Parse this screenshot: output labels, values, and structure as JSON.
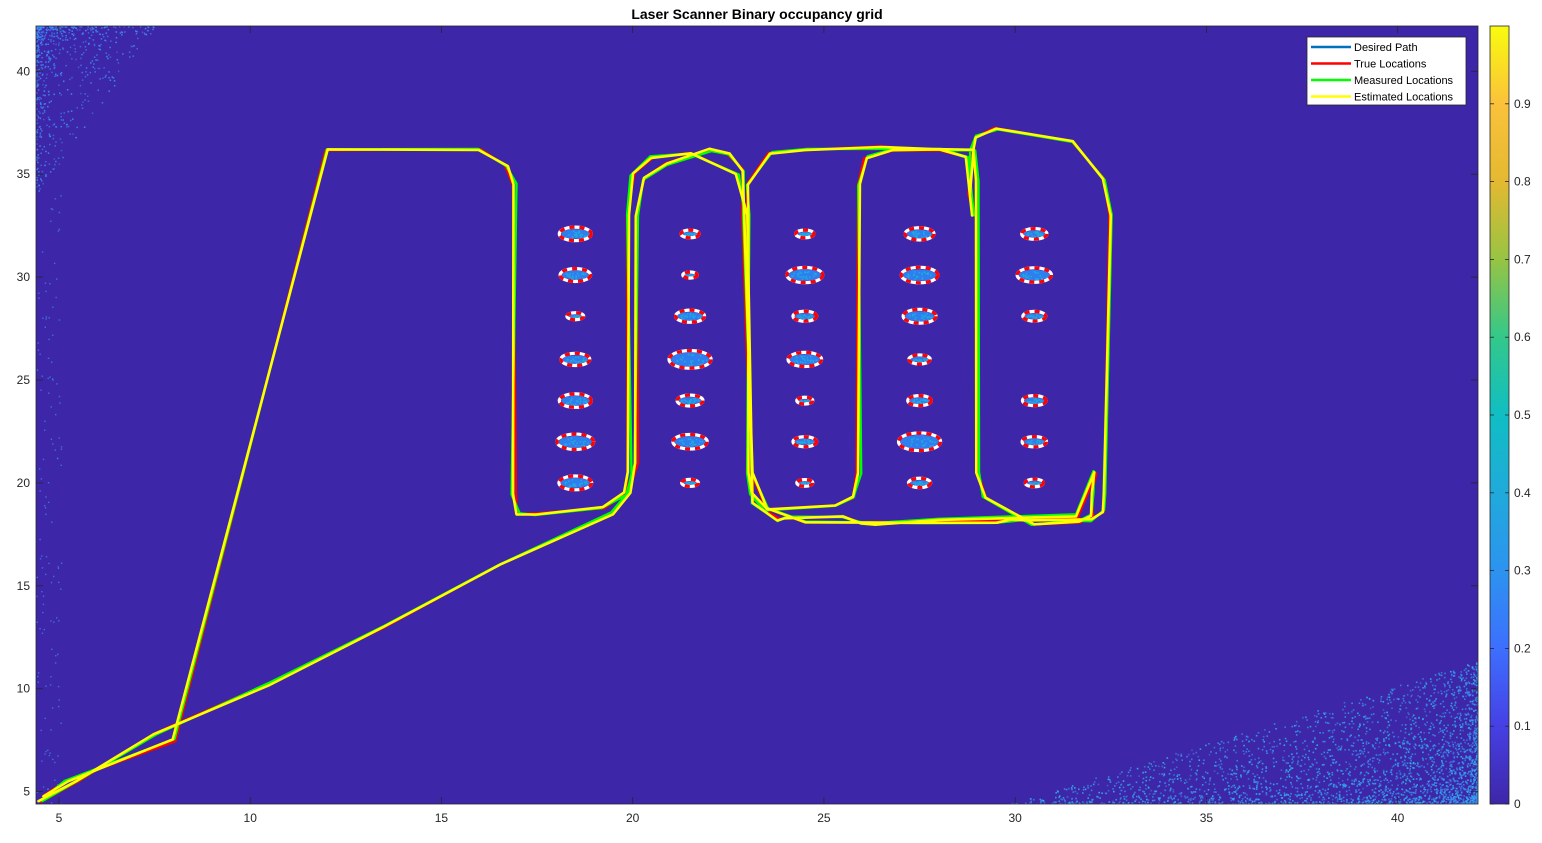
{
  "chart_data": {
    "type": "line",
    "title": "Laser Scanner Binary occupancy grid",
    "xlabel": "",
    "ylabel": "",
    "xlim": [
      4.4,
      42.1
    ],
    "ylim": [
      4.4,
      42.2
    ],
    "x_ticks": [
      5,
      10,
      15,
      20,
      25,
      30,
      35,
      40
    ],
    "y_ticks": [
      5,
      10,
      15,
      20,
      25,
      30,
      35,
      40
    ],
    "background_color": "#3e26a8",
    "grid": false,
    "legend_position": "top-right",
    "series": [
      {
        "name": "Desired Path",
        "color": "#0072bd"
      },
      {
        "name": "True Locations",
        "color": "#ff0000"
      },
      {
        "name": "Measured Locations",
        "color": "#00ff00"
      },
      {
        "name": "Estimated Locations",
        "color": "#ffff00"
      }
    ],
    "path": {
      "x": [
        4.5,
        5.5,
        7.5,
        10.5,
        13.5,
        16.5,
        19.5,
        19.9,
        20.1,
        20.1,
        20.3,
        20.9,
        22.0,
        22.5,
        22.9,
        22.9,
        23.1,
        23.5,
        24.5,
        27.5,
        29.5,
        29.9,
        30.3,
        32.0,
        32.3,
        32.3,
        32.5,
        32.3,
        31.5,
        29.5,
        29.0,
        28.9,
        28.8,
        28.9,
        28.7,
        28.0,
        26.8,
        26.1,
        25.9,
        25.9,
        25.8,
        25.3,
        23.5,
        23.1,
        23.0,
        23.0,
        23.0,
        23.6,
        24.5,
        26.5,
        27.8,
        28.9,
        29.0,
        29.0,
        29.2,
        30.5,
        31.7,
        32.0,
        32.0,
        32.1,
        31.6,
        28.0,
        26.3,
        26.0,
        25.5,
        24.0,
        23.8,
        23.1,
        23.0,
        22.7,
        21.5,
        20.5,
        20.0,
        19.9,
        19.9,
        19.8,
        19.2,
        17.5,
        17.0,
        16.9,
        16.9,
        16.7,
        16.0,
        12.0,
        8.0,
        5.2,
        4.6
      ],
      "y": [
        4.5,
        5.5,
        7.8,
        10.2,
        13.0,
        16.0,
        18.5,
        19.5,
        21.0,
        33.0,
        34.8,
        35.5,
        36.2,
        36.0,
        35.2,
        33.0,
        20.5,
        18.8,
        18.1,
        18.1,
        18.1,
        18.2,
        18.2,
        18.2,
        18.6,
        19.5,
        33.0,
        34.8,
        36.6,
        37.2,
        36.8,
        36.2,
        34.0,
        33.0,
        35.8,
        36.2,
        36.2,
        35.8,
        34.5,
        20.5,
        19.3,
        18.9,
        18.7,
        19.5,
        20.5,
        33.0,
        34.5,
        36.0,
        36.2,
        36.3,
        36.2,
        36.2,
        34.7,
        20.5,
        19.3,
        18.0,
        18.1,
        18.4,
        19.5,
        20.5,
        18.4,
        18.2,
        18.0,
        18.0,
        18.4,
        18.3,
        18.2,
        19.0,
        33.0,
        35.0,
        36.0,
        35.8,
        35.0,
        33.0,
        20.5,
        19.5,
        18.8,
        18.5,
        18.5,
        19.5,
        34.5,
        35.4,
        36.2,
        36.2,
        7.5,
        5.5,
        4.8
      ]
    },
    "colorbar": {
      "ticks": [
        0,
        0.1,
        0.2,
        0.3,
        0.4,
        0.5,
        0.6,
        0.7,
        0.8,
        0.9
      ]
    },
    "obstacles": [
      {
        "x": 18.5,
        "y": 32.1,
        "r": 0.42
      },
      {
        "x": 18.5,
        "y": 30.1,
        "r": 0.4
      },
      {
        "x": 18.5,
        "y": 28.1,
        "r": 0.22
      },
      {
        "x": 18.5,
        "y": 26.0,
        "r": 0.38
      },
      {
        "x": 18.5,
        "y": 24.0,
        "r": 0.42
      },
      {
        "x": 18.5,
        "y": 22.0,
        "r": 0.48
      },
      {
        "x": 18.5,
        "y": 20.0,
        "r": 0.43
      },
      {
        "x": 21.5,
        "y": 32.1,
        "r": 0.24
      },
      {
        "x": 21.5,
        "y": 30.1,
        "r": 0.19
      },
      {
        "x": 21.5,
        "y": 28.1,
        "r": 0.38
      },
      {
        "x": 21.5,
        "y": 26.0,
        "r": 0.55
      },
      {
        "x": 21.5,
        "y": 24.0,
        "r": 0.34
      },
      {
        "x": 21.5,
        "y": 22.0,
        "r": 0.45
      },
      {
        "x": 21.5,
        "y": 20.0,
        "r": 0.22
      },
      {
        "x": 24.5,
        "y": 32.1,
        "r": 0.24
      },
      {
        "x": 24.5,
        "y": 30.1,
        "r": 0.47
      },
      {
        "x": 24.5,
        "y": 28.1,
        "r": 0.31
      },
      {
        "x": 24.5,
        "y": 26.0,
        "r": 0.44
      },
      {
        "x": 24.5,
        "y": 24.0,
        "r": 0.21
      },
      {
        "x": 24.5,
        "y": 22.0,
        "r": 0.31
      },
      {
        "x": 24.5,
        "y": 20.0,
        "r": 0.21
      },
      {
        "x": 27.5,
        "y": 32.1,
        "r": 0.38
      },
      {
        "x": 27.5,
        "y": 30.1,
        "r": 0.48
      },
      {
        "x": 27.5,
        "y": 28.1,
        "r": 0.43
      },
      {
        "x": 27.5,
        "y": 26.0,
        "r": 0.28
      },
      {
        "x": 27.5,
        "y": 24.0,
        "r": 0.31
      },
      {
        "x": 27.5,
        "y": 22.0,
        "r": 0.55
      },
      {
        "x": 27.5,
        "y": 20.0,
        "r": 0.29
      },
      {
        "x": 30.5,
        "y": 32.1,
        "r": 0.33
      },
      {
        "x": 30.5,
        "y": 30.1,
        "r": 0.45
      },
      {
        "x": 30.5,
        "y": 28.1,
        "r": 0.3
      },
      {
        "x": 30.5,
        "y": 24.0,
        "r": 0.31
      },
      {
        "x": 30.5,
        "y": 22.0,
        "r": 0.32
      },
      {
        "x": 30.5,
        "y": 20.0,
        "r": 0.24
      }
    ]
  }
}
